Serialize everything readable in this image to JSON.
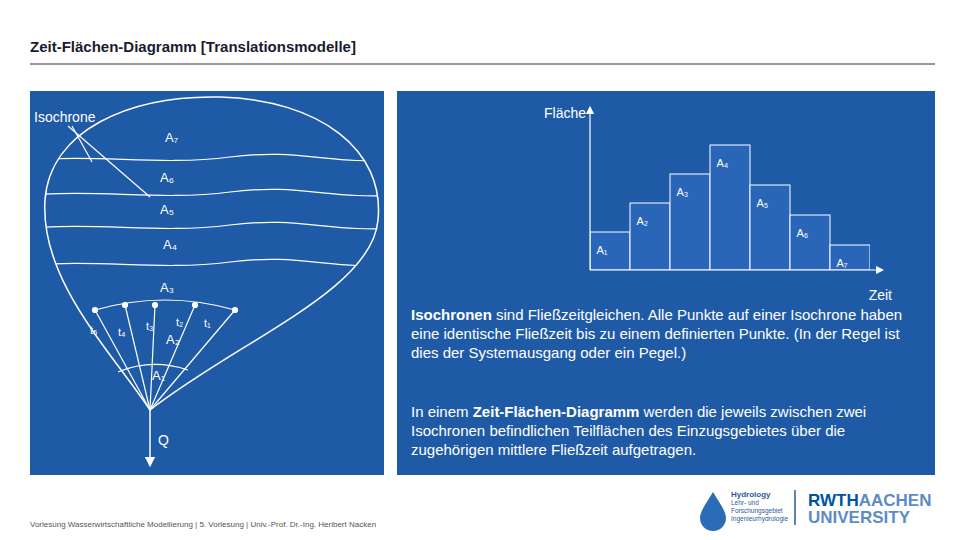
{
  "title": "Zeit-Flächen-Diagramm [Translationsmodelle]",
  "catchment": {
    "isochrone_label": "Isochrone",
    "area_labels": [
      "A₇",
      "A₆",
      "A₅",
      "A₄",
      "A₃",
      "A₂",
      "A₁"
    ],
    "time_labels": [
      "t₅",
      "t₄",
      "t₃",
      "t₂",
      "t₁"
    ],
    "outlet_label": "Q"
  },
  "chart_data": {
    "type": "bar",
    "categories": [
      "A₁",
      "A₂",
      "A₃",
      "A₄",
      "A₅",
      "A₆",
      "A₇"
    ],
    "values": [
      38,
      67,
      96,
      125,
      85,
      55,
      25
    ],
    "color": "#2a66b8",
    "xlabel": "Zeit",
    "ylabel": "Fläche",
    "ylim": [
      0,
      150
    ],
    "yticks": [],
    "tick_labels": false
  },
  "paragraphs": [
    [
      {
        "text": "Isochronen",
        "bold": true
      },
      {
        "text": " sind Fließzeitgleichen. Alle Punkte auf einer Isochrone haben eine identische Fließzeit bis zu einem definierten Punkte. (In der Regel ist dies der Systemausgang oder ein Pegel.)",
        "bold": false
      }
    ],
    [
      {
        "text": "In einem ",
        "bold": false
      },
      {
        "text": "Zeit-Flächen-Diagramm",
        "bold": true
      },
      {
        "text": " werden die jeweils zwischen zwei Isochronen befindlichen Teilflächen des Einzugsgebietes über die zugehörigen mittlere Fließzeit aufgetragen.",
        "bold": false
      }
    ]
  ],
  "footer": "Vorlesung Wasserwirtschaftliche Modellierung | 5. Vorlesung | Univ.-Prof. Dr.-Ing. Heribert Nacken",
  "logos": {
    "institute": [
      "Hydrology",
      "Lehr- und",
      "Forschungsgebiet",
      "Ingenieurhydrologie"
    ],
    "university": [
      "RWTH",
      "AACHEN",
      "UNIVERSITY"
    ]
  }
}
